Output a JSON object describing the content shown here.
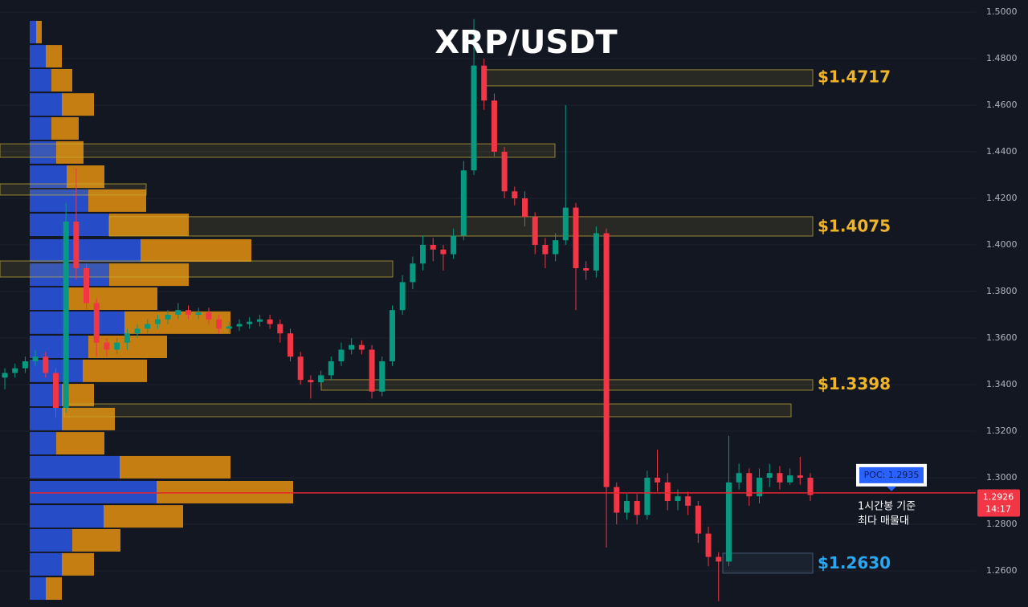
{
  "chart_data": {
    "type": "candlestick",
    "title": "XRP/USDT",
    "ylim": [
      1.24448,
      1.50517
    ],
    "yticks": [
      {
        "value": 1.26,
        "label": "1.2600"
      },
      {
        "value": 1.28,
        "label": "1.2800"
      },
      {
        "value": 1.3,
        "label": "1.3000"
      },
      {
        "value": 1.32,
        "label": "1.3200"
      },
      {
        "value": 1.34,
        "label": "1.3400"
      },
      {
        "value": 1.36,
        "label": "1.3600"
      },
      {
        "value": 1.38,
        "label": "1.3800"
      },
      {
        "value": 1.4,
        "label": "1.4000"
      },
      {
        "value": 1.42,
        "label": "1.4200"
      },
      {
        "value": 1.44,
        "label": "1.4400"
      },
      {
        "value": 1.46,
        "label": "1.4600"
      },
      {
        "value": 1.48,
        "label": "1.4800"
      },
      {
        "value": 1.5,
        "label": "1.5000"
      }
    ],
    "grid": true,
    "up_color": "#089981",
    "down_color": "#f23645",
    "open": [
      1.343,
      1.345,
      1.347,
      1.35,
      1.352,
      1.345,
      1.33,
      1.41,
      1.39,
      1.375,
      1.358,
      1.355,
      1.358,
      1.362,
      1.364,
      1.366,
      1.368,
      1.37,
      1.372,
      1.37,
      1.371,
      1.368,
      1.364,
      1.365,
      1.366,
      1.367,
      1.368,
      1.366,
      1.362,
      1.352,
      1.342,
      1.341,
      1.344,
      1.35,
      1.355,
      1.357,
      1.355,
      1.337,
      1.35,
      1.372,
      1.384,
      1.392,
      1.4,
      1.398,
      1.396,
      1.404,
      1.432,
      1.477,
      1.462,
      1.44,
      1.423,
      1.42,
      1.412,
      1.4,
      1.396,
      1.402,
      1.416,
      1.39,
      1.389,
      1.405,
      1.296,
      1.285,
      1.29,
      1.284,
      1.3,
      1.298,
      1.29,
      1.292,
      1.288,
      1.276,
      1.266,
      1.264,
      1.298,
      1.302,
      1.292,
      1.3,
      1.302,
      1.298,
      1.301,
      1.3
    ],
    "high": [
      1.347,
      1.349,
      1.352,
      1.355,
      1.354,
      1.347,
      1.418,
      1.433,
      1.392,
      1.377,
      1.36,
      1.36,
      1.364,
      1.366,
      1.368,
      1.37,
      1.372,
      1.375,
      1.374,
      1.373,
      1.373,
      1.37,
      1.367,
      1.368,
      1.369,
      1.37,
      1.37,
      1.368,
      1.364,
      1.354,
      1.344,
      1.346,
      1.352,
      1.358,
      1.36,
      1.359,
      1.357,
      1.352,
      1.374,
      1.387,
      1.395,
      1.404,
      1.403,
      1.4,
      1.407,
      1.436,
      1.497,
      1.48,
      1.465,
      1.442,
      1.425,
      1.423,
      1.414,
      1.403,
      1.405,
      1.46,
      1.418,
      1.393,
      1.408,
      1.407,
      1.298,
      1.293,
      1.293,
      1.303,
      1.312,
      1.302,
      1.295,
      1.294,
      1.29,
      1.279,
      1.268,
      1.318,
      1.306,
      1.304,
      1.304,
      1.306,
      1.305,
      1.304,
      1.309,
      1.302
    ],
    "low": [
      1.338,
      1.343,
      1.345,
      1.348,
      1.343,
      1.326,
      1.328,
      1.385,
      1.372,
      1.352,
      1.352,
      1.353,
      1.355,
      1.36,
      1.362,
      1.364,
      1.366,
      1.368,
      1.368,
      1.368,
      1.366,
      1.362,
      1.362,
      1.363,
      1.364,
      1.365,
      1.364,
      1.358,
      1.35,
      1.34,
      1.334,
      1.339,
      1.342,
      1.348,
      1.353,
      1.353,
      1.334,
      1.335,
      1.348,
      1.37,
      1.381,
      1.389,
      1.393,
      1.389,
      1.394,
      1.402,
      1.43,
      1.458,
      1.438,
      1.42,
      1.417,
      1.408,
      1.396,
      1.39,
      1.393,
      1.4,
      1.372,
      1.385,
      1.386,
      1.27,
      1.28,
      1.282,
      1.28,
      1.282,
      1.294,
      1.286,
      1.286,
      1.284,
      1.272,
      1.262,
      1.247,
      1.262,
      1.295,
      1.288,
      1.289,
      1.296,
      1.295,
      1.297,
      1.297,
      1.29
    ],
    "close": [
      1.345,
      1.347,
      1.35,
      1.352,
      1.345,
      1.33,
      1.41,
      1.39,
      1.375,
      1.358,
      1.355,
      1.358,
      1.362,
      1.364,
      1.366,
      1.368,
      1.37,
      1.372,
      1.37,
      1.371,
      1.368,
      1.364,
      1.365,
      1.366,
      1.367,
      1.368,
      1.366,
      1.362,
      1.352,
      1.342,
      1.341,
      1.344,
      1.35,
      1.355,
      1.357,
      1.355,
      1.337,
      1.35,
      1.372,
      1.384,
      1.392,
      1.4,
      1.398,
      1.396,
      1.404,
      1.432,
      1.477,
      1.462,
      1.44,
      1.423,
      1.42,
      1.412,
      1.4,
      1.396,
      1.402,
      1.416,
      1.39,
      1.389,
      1.405,
      1.296,
      1.285,
      1.29,
      1.284,
      1.3,
      1.298,
      1.29,
      1.292,
      1.288,
      1.276,
      1.266,
      1.264,
      1.298,
      1.302,
      1.292,
      1.3,
      1.302,
      1.298,
      1.301,
      1.3,
      1.2926
    ],
    "profile": {
      "xlim": [
        0,
        400
      ],
      "buy_color": "#2952d9",
      "sell_color": "#d98a0f",
      "prices": [
        1.4914,
        1.481,
        1.4707,
        1.4603,
        1.45,
        1.4397,
        1.4293,
        1.419,
        1.4086,
        1.3976,
        1.3872,
        1.3769,
        1.3666,
        1.3562,
        1.3459,
        1.3355,
        1.3252,
        1.3148,
        1.3045,
        1.2938,
        1.2834,
        1.2731,
        1.2628,
        1.2524
      ],
      "buy": [
        8,
        20,
        27,
        40,
        27,
        33,
        46,
        73,
        99,
        138,
        99,
        45,
        118,
        73,
        66,
        40,
        40,
        33,
        112,
        158,
        92,
        53,
        40,
        20
      ],
      "sell": [
        7,
        20,
        26,
        40,
        34,
        34,
        47,
        72,
        99,
        138,
        99,
        114,
        132,
        98,
        80,
        40,
        66,
        60,
        138,
        170,
        99,
        60,
        40,
        20
      ]
    },
    "zones": [
      {
        "low": 1.4683,
        "high": 1.4752,
        "color": "#c9b03c",
        "level": {
          "value": 1.4717,
          "label": "$1.4717"
        },
        "label_color": "#f0b429"
      },
      {
        "low": 1.4376,
        "high": 1.4434,
        "color": "#c9b03c"
      },
      {
        "low": 1.4214,
        "high": 1.4262,
        "color": "#c9b03c"
      },
      {
        "low": 1.4038,
        "high": 1.4121,
        "color": "#c9b03c",
        "level": {
          "value": 1.4075,
          "label": "$1.4075"
        },
        "label_color": "#f0b429"
      },
      {
        "low": 1.3862,
        "high": 1.3931,
        "color": "#c9b03c"
      },
      {
        "low": 1.3376,
        "high": 1.3421,
        "color": "#c9b03c",
        "level": {
          "value": 1.3398,
          "label": "$1.3398"
        },
        "label_color": "#f0b429"
      },
      {
        "low": 1.3262,
        "high": 1.3317,
        "color": "#c9b03c"
      },
      {
        "low": 1.259,
        "high": 1.2676,
        "color": "#5a7090",
        "level": {
          "value": 1.263,
          "label": "$1.2630"
        },
        "label_color": "#2aa7f0"
      }
    ],
    "poc": {
      "value": 1.2935,
      "label": "POC: 1.2935",
      "color": "#e5262f"
    },
    "last_price": 1.2926,
    "countdown": "14:17",
    "annotation": [
      "1시간봉 기준",
      "최다 매물대"
    ]
  }
}
